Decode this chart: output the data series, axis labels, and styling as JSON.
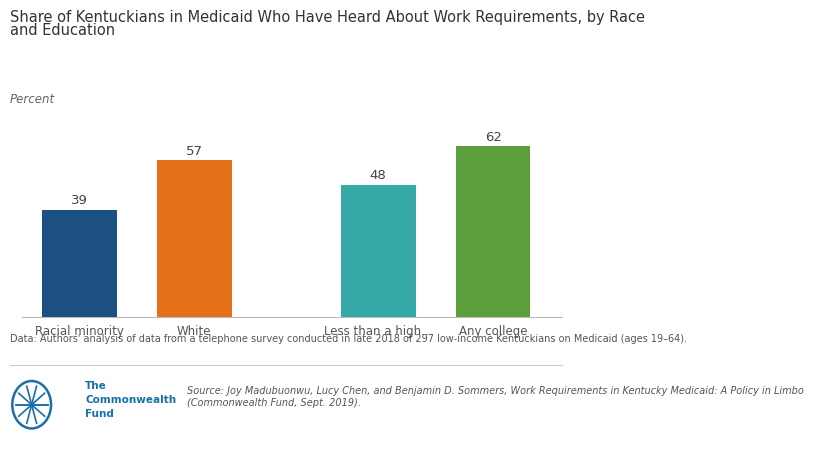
{
  "title_line1": "Share of Kentuckians in Medicaid Who Have Heard About Work Requirements, by Race",
  "title_line2": "and Education",
  "ylabel": "Percent",
  "categories": [
    "Racial minority",
    "White",
    "Less than a high...",
    "Any college"
  ],
  "values": [
    39,
    57,
    48,
    62
  ],
  "bar_colors": [
    "#1c4f82",
    "#e5701a",
    "#35a8a8",
    "#5b9e3b"
  ],
  "value_labels": [
    "39",
    "57",
    "48",
    "62"
  ],
  "ylim": [
    0,
    75
  ],
  "data_note": "Data: Authors' analysis of data from a telephone survey conducted in late 2018 of 297 low-income Kentuckians on Medicaid (ages 19–64).",
  "source_text_italic": "Source: Joy Madubuonwu, Lucy Chen, and Benjamin D. Sommers, ",
  "source_title": "Work Requirements in Kentucky Medicaid: A Policy in Limbo",
  "source_text2": "\n(Commonwealth Fund, Sept. 2019).",
  "logo_text": "The\nCommonwealth\nFund",
  "title_fontsize": 10.5,
  "label_fontsize": 8.5,
  "tick_fontsize": 8.5,
  "note_fontsize": 7.0,
  "value_fontsize": 9.5,
  "bg_color": "#ffffff",
  "x_positions": [
    0,
    1,
    2.6,
    3.6
  ],
  "bar_width": 0.65
}
